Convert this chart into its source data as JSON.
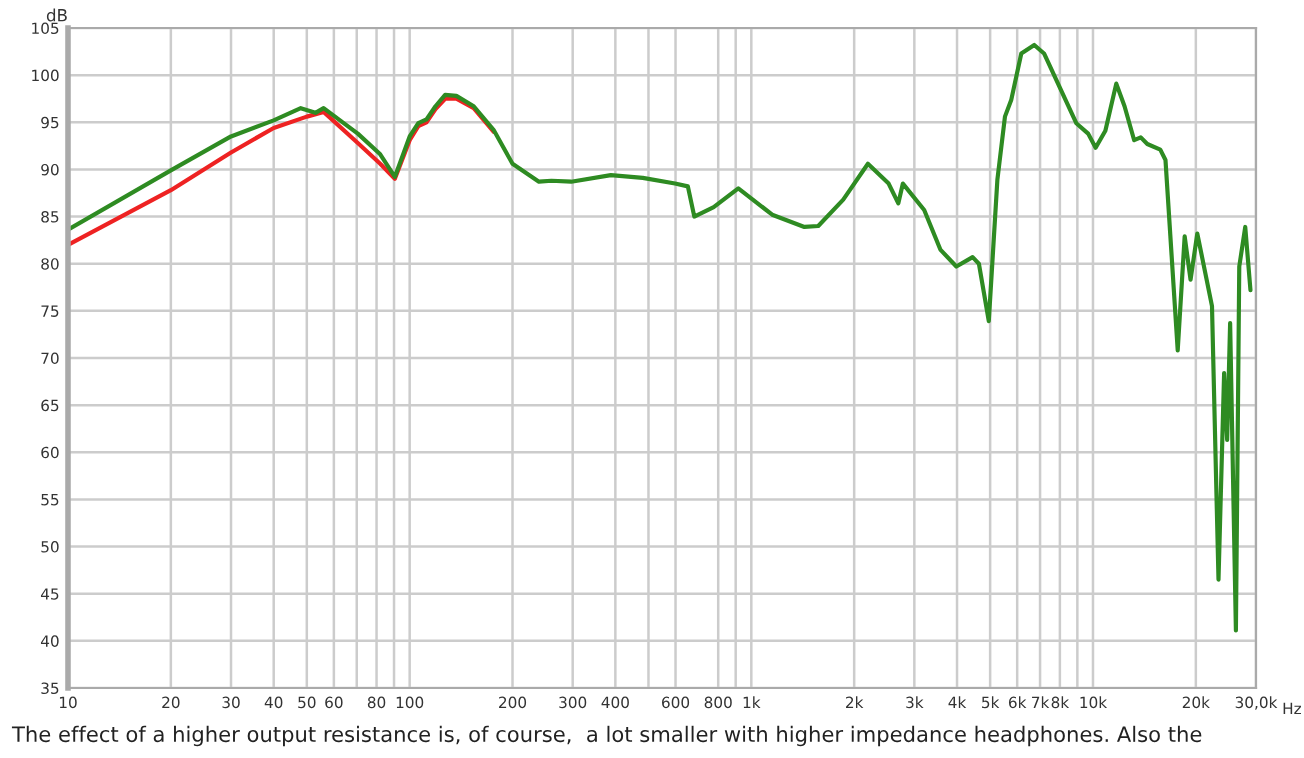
{
  "chart_data": {
    "type": "line",
    "xlabel": "Hz",
    "ylabel": "dB",
    "log": "x",
    "grid": true,
    "line_style": "solid",
    "marker": "none",
    "xlim": [
      10,
      30000
    ],
    "ylim": [
      35,
      105
    ],
    "xticks": [
      10,
      20,
      30,
      40,
      50,
      60,
      {
        "value": 70,
        "label": null
      },
      80,
      {
        "value": 90,
        "label": null
      },
      100,
      200,
      300,
      400,
      {
        "value": 500,
        "label": null
      },
      600,
      800,
      {
        "value": 900,
        "label": null
      },
      {
        "value": 1000,
        "label": "1k"
      },
      {
        "value": 2000,
        "label": "2k"
      },
      {
        "value": 3000,
        "label": "3k"
      },
      {
        "value": 4000,
        "label": "4k"
      },
      {
        "value": 5000,
        "label": "5k"
      },
      {
        "value": 6000,
        "label": "6k"
      },
      {
        "value": 7000,
        "label": "7k"
      },
      {
        "value": 8000,
        "label": "8k"
      },
      {
        "value": 9000,
        "label": null
      },
      {
        "value": 10000,
        "label": "10k"
      },
      {
        "value": 20000,
        "label": "20k"
      },
      {
        "value": 30000,
        "label": "30,0k"
      }
    ],
    "yticks": [
      35,
      40,
      45,
      50,
      55,
      60,
      65,
      70,
      75,
      80,
      85,
      90,
      95,
      100,
      105
    ],
    "series": [
      {
        "color": "#ee2222",
        "x": [
          10,
          20,
          30,
          40,
          50,
          56,
          70.5,
          82,
          90.5,
          100,
          106,
          112,
          119,
          127,
          137,
          154,
          176
        ],
        "values": [
          82.0,
          87.8,
          91.8,
          94.4,
          95.6,
          96.1,
          92.8,
          90.6,
          89.0,
          93.1,
          94.6,
          95.0,
          96.4,
          97.5,
          97.5,
          96.5,
          94.0
        ]
      },
      {
        "color": "#2e8b22",
        "x": [
          10,
          20,
          30,
          40,
          48,
          53,
          56,
          70.5,
          82,
          90.5,
          100,
          106,
          112,
          119,
          127,
          137,
          154,
          176,
          200,
          239,
          260,
          297,
          388,
          481,
          598,
          652,
          681,
          776,
          916,
          1151,
          1430,
          1570,
          1858,
          2194,
          2523,
          2693,
          2777,
          3206,
          3575,
          3982,
          4443,
          4635,
          4955,
          5250,
          5525,
          5767,
          6168,
          6732,
          7190,
          8935,
          9680,
          10180,
          10870,
          11700,
          12370,
          13200,
          13800,
          14420,
          15740,
          16300,
          17700,
          18550,
          19300,
          20200,
          22300,
          23300,
          24200,
          24700,
          25200,
          26200,
          26800,
          27900,
          28900
        ],
        "values": [
          83.6,
          89.9,
          93.5,
          95.2,
          96.5,
          96.0,
          96.5,
          93.8,
          91.6,
          89.2,
          93.5,
          94.9,
          95.3,
          96.7,
          97.9,
          97.8,
          96.7,
          94.2,
          90.6,
          88.7,
          88.8,
          88.7,
          89.4,
          89.1,
          88.5,
          88.2,
          85.0,
          86.0,
          88.0,
          85.2,
          83.9,
          84.0,
          86.8,
          90.6,
          88.5,
          86.4,
          88.5,
          85.7,
          81.5,
          79.7,
          80.7,
          80.0,
          73.9,
          88.9,
          95.6,
          97.4,
          102.3,
          103.2,
          102.3,
          94.9,
          93.8,
          92.3,
          94.1,
          99.1,
          96.7,
          93.1,
          93.4,
          92.7,
          92.1,
          91.0,
          70.8,
          82.9,
          78.3,
          83.2,
          75.5,
          46.5,
          68.4,
          61.3,
          73.7,
          41.1,
          79.7,
          83.9,
          77.2
        ]
      }
    ],
    "annotations": [
      "The effect of a higher output resistance is, of course,  a lot smaller with higher impedance headphones. Also the"
    ]
  }
}
